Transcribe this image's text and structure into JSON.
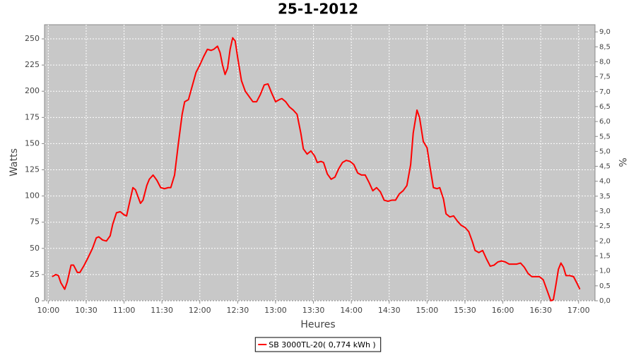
{
  "chart_data": {
    "type": "line",
    "title": "25-1-2012",
    "x_label": "Heures",
    "y_label": "Watts",
    "y2_label": "%",
    "x": [
      "10:03",
      "10:06",
      "10:08",
      "10:10",
      "10:13",
      "10:15",
      "10:18",
      "10:20",
      "10:23",
      "10:25",
      "10:28",
      "10:31",
      "10:35",
      "10:38",
      "10:40",
      "10:43",
      "10:46",
      "10:49",
      "10:51",
      "10:54",
      "10:57",
      "11:00",
      "11:02",
      "11:04",
      "11:07",
      "11:09",
      "11:13",
      "11:15",
      "11:18",
      "11:20",
      "11:23",
      "11:26",
      "11:29",
      "11:32",
      "11:35",
      "11:37",
      "11:40",
      "11:43",
      "11:46",
      "11:48",
      "11:51",
      "11:54",
      "11:57",
      "12:00",
      "12:03",
      "12:06",
      "12:09",
      "12:11",
      "12:14",
      "12:16",
      "12:18",
      "12:20",
      "12:22",
      "12:24",
      "12:26",
      "12:28",
      "12:30",
      "12:33",
      "12:36",
      "12:39",
      "12:42",
      "12:45",
      "12:48",
      "12:51",
      "12:54",
      "12:57",
      "13:00",
      "13:03",
      "13:05",
      "13:08",
      "13:11",
      "13:14",
      "13:17",
      "13:20",
      "13:22",
      "13:25",
      "13:28",
      "13:31",
      "13:33",
      "13:36",
      "13:38",
      "13:41",
      "13:44",
      "13:47",
      "13:50",
      "13:53",
      "13:56",
      "13:59",
      "14:02",
      "14:05",
      "14:08",
      "14:11",
      "14:14",
      "14:17",
      "14:20",
      "14:23",
      "14:26",
      "14:29",
      "14:32",
      "14:35",
      "14:38",
      "14:41",
      "14:44",
      "14:47",
      "14:49",
      "14:52",
      "14:54",
      "14:57",
      "15:00",
      "15:02",
      "15:05",
      "15:08",
      "15:10",
      "15:13",
      "15:15",
      "15:18",
      "15:21",
      "15:24",
      "15:27",
      "15:30",
      "15:33",
      "15:36",
      "15:38",
      "15:41",
      "15:44",
      "15:47",
      "15:50",
      "15:53",
      "15:56",
      "15:59",
      "16:02",
      "16:05",
      "16:08",
      "16:11",
      "16:14",
      "16:17",
      "16:20",
      "16:23",
      "16:26",
      "16:29",
      "16:32",
      "16:35",
      "16:38",
      "16:40",
      "16:42",
      "16:44",
      "16:46",
      "16:48",
      "16:50",
      "16:53",
      "16:56",
      "16:59",
      "17:01"
    ],
    "series": [
      {
        "name": "SB 3000TL-20( 0,774 kWh )",
        "color": "#ff0000",
        "values": [
          23,
          25,
          24,
          17,
          11,
          18,
          34,
          34,
          27,
          27,
          33,
          40,
          50,
          60,
          61,
          58,
          57,
          62,
          73,
          84,
          85,
          82,
          81,
          92,
          108,
          106,
          93,
          96,
          110,
          116,
          120,
          115,
          108,
          107,
          108,
          108,
          120,
          150,
          178,
          190,
          192,
          205,
          218,
          225,
          233,
          240,
          239,
          240,
          243,
          237,
          225,
          216,
          222,
          240,
          251,
          248,
          232,
          210,
          200,
          195,
          190,
          190,
          197,
          206,
          207,
          198,
          190,
          192,
          193,
          190,
          185,
          182,
          178,
          160,
          145,
          140,
          143,
          138,
          132,
          133,
          132,
          121,
          116,
          118,
          126,
          132,
          134,
          133,
          130,
          122,
          120,
          120,
          113,
          105,
          108,
          104,
          96,
          95,
          96,
          96,
          102,
          105,
          110,
          130,
          160,
          182,
          175,
          152,
          146,
          130,
          108,
          107,
          108,
          97,
          83,
          80,
          81,
          76,
          72,
          70,
          66,
          56,
          48,
          46,
          48,
          40,
          33,
          34,
          37,
          38,
          37,
          35,
          35,
          35,
          36,
          32,
          26,
          23,
          23,
          23,
          20,
          10,
          0,
          1,
          15,
          30,
          36,
          32,
          24,
          24,
          23,
          16,
          11
        ]
      }
    ],
    "xlim": [
      "09:57",
      "17:13"
    ],
    "xticks": [
      "10:00",
      "10:30",
      "11:00",
      "11:30",
      "12:00",
      "12:30",
      "13:00",
      "13:30",
      "14:00",
      "14:30",
      "15:00",
      "15:30",
      "16:00",
      "16:30",
      "17:00"
    ],
    "ylim": [
      0,
      263.5
    ],
    "yticks": [
      0,
      25,
      50,
      75,
      100,
      125,
      150,
      175,
      200,
      225,
      250
    ],
    "y2lim": [
      0,
      9.24
    ],
    "y2ticks": [
      {
        "value": 0,
        "label": "0,0"
      },
      {
        "value": 0.5,
        "label": "0,5"
      },
      {
        "value": 1,
        "label": "1,0"
      },
      {
        "value": 1.5,
        "label": "1,5"
      },
      {
        "value": 2,
        "label": "2,0"
      },
      {
        "value": 2.5,
        "label": "2,5"
      },
      {
        "value": 3,
        "label": "3,0"
      },
      {
        "value": 3.5,
        "label": "3,5"
      },
      {
        "value": 4,
        "label": "4,0"
      },
      {
        "value": 4.5,
        "label": "4,5"
      },
      {
        "value": 5,
        "label": "5,0"
      },
      {
        "value": 5.5,
        "label": "5,5"
      },
      {
        "value": 6,
        "label": "6,0"
      },
      {
        "value": 6.5,
        "label": "6,5"
      },
      {
        "value": 7,
        "label": "7,0"
      },
      {
        "value": 7.5,
        "label": "7,5"
      },
      {
        "value": 8,
        "label": "8,0"
      },
      {
        "value": 8.5,
        "label": "8,5"
      },
      {
        "value": 9,
        "label": "9,0"
      }
    ],
    "grid": true,
    "legend": "bottom"
  }
}
